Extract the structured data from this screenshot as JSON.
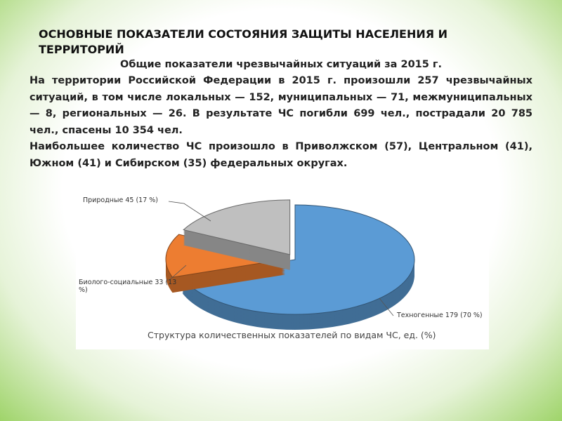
{
  "header": {
    "title": "ОСНОВНЫЕ ПОКАЗАТЕЛИ СОСТОЯНИЯ ЗАЩИТЫ НАСЕЛЕНИЯ И ТЕРРИТОРИЙ",
    "subtitle": "Общие показатели чрезвычайных ситуаций за 2015 г."
  },
  "body": {
    "paragraphs": [
      "На территории Российской Федерации в 2015 г. произошли 257 чрезвычайных ситуаций, в том числе локальных — 152, муниципальных — 71, межмуниципальных — 8, региональных — 26. В результате ЧС погибли 699 чел., пострадали 20 785 чел., спасены 10 354 чел.",
      "Наибольшее количество ЧС произошло в Приволжском (57), Центральном (41), Южном (41) и Сибирском (35) федеральных округах."
    ]
  },
  "chart_data": {
    "type": "pie",
    "title": "Структура количественных показателей по видам ЧС, ед. (%)",
    "values": [
      179,
      33,
      45
    ],
    "value_labels": [
      "Техногенные 179 (70 %)",
      "Биолого-социальные 33 (13 %)",
      "Природные 45 (17 %)"
    ],
    "colors": [
      "#5b9bd5",
      "#ed7d31",
      "#bfbfbf"
    ]
  }
}
